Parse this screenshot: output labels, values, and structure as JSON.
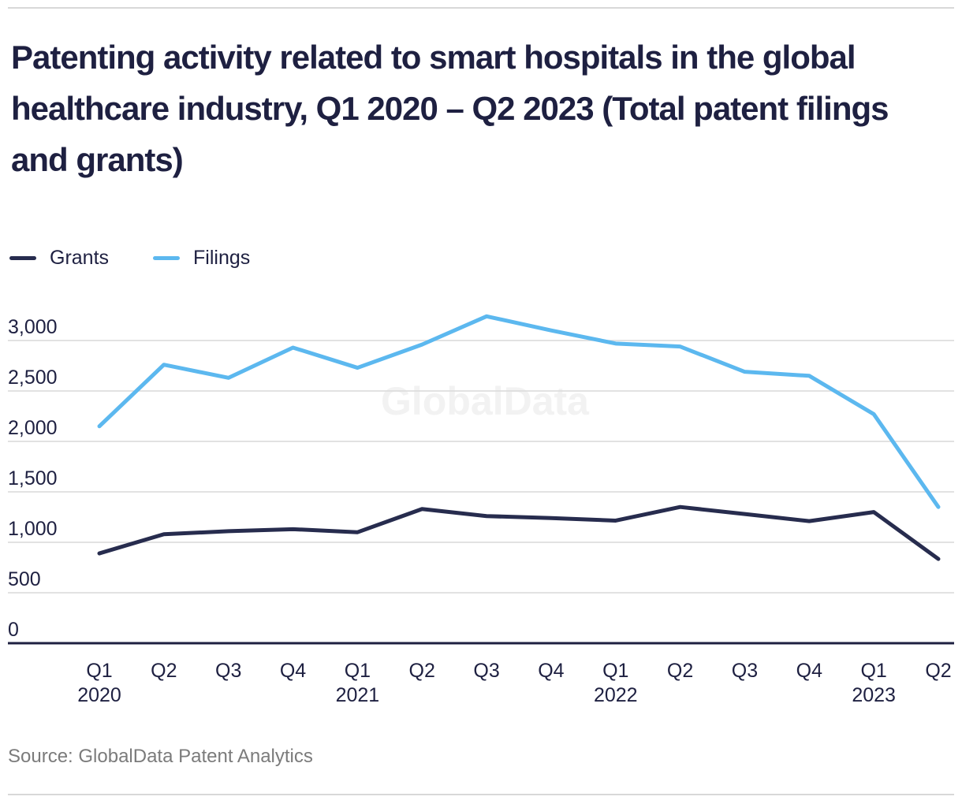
{
  "page": {
    "title": "Patenting activity related to smart hospitals in the global healthcare industry, Q1 2020 – Q2 2023 (Total patent filings and grants)",
    "watermark": "GlobalData",
    "source": "Source: GlobalData Patent Analytics"
  },
  "colors": {
    "grants_line": "#272c4e",
    "filings_line": "#5cb8ef",
    "gridline": "#d9d9d9",
    "axis_line": "#1e2041",
    "text_navy": "#1e2041",
    "source_gray": "#7b7b7b",
    "watermark_gray": "#f2f2f2"
  },
  "chart_data": {
    "type": "line",
    "title": "Patenting activity related to smart hospitals in the global healthcare industry, Q1 2020 – Q2 2023 (Total patent filings and grants)",
    "categories": [
      "Q1 2020",
      "Q2 2020",
      "Q3 2020",
      "Q4 2020",
      "Q1 2021",
      "Q2 2021",
      "Q3 2021",
      "Q4 2021",
      "Q1 2022",
      "Q2 2022",
      "Q3 2022",
      "Q4 2022",
      "Q1 2023",
      "Q2 2023"
    ],
    "series": [
      {
        "name": "Grants",
        "color": "#272c4e",
        "values": [
          890,
          1080,
          1110,
          1130,
          1100,
          1330,
          1260,
          1240,
          1215,
          1350,
          1280,
          1210,
          1300,
          835
        ]
      },
      {
        "name": "Filings",
        "color": "#5cb8ef",
        "values": [
          2150,
          2760,
          2630,
          2930,
          2730,
          2960,
          3240,
          3100,
          2970,
          2940,
          2690,
          2650,
          2270,
          1350
        ]
      }
    ],
    "xlabel": "",
    "ylabel": "",
    "ylim": [
      0,
      3000
    ],
    "yticks": [
      0,
      500,
      1000,
      1500,
      2000,
      2500,
      3000
    ],
    "grid": true,
    "legend_position": "top-left",
    "source": "Source: GlobalData Patent Analytics",
    "watermark": "GlobalData"
  }
}
